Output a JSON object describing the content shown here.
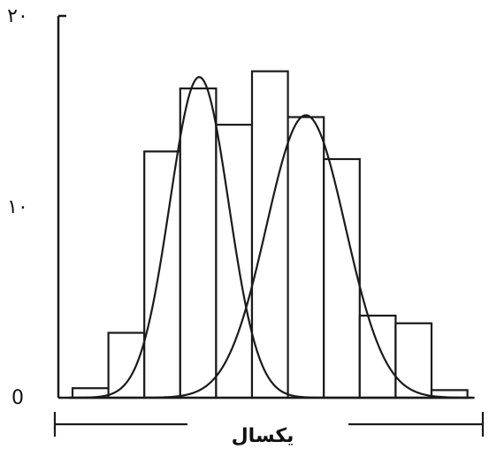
{
  "chart_data": {
    "type": "bar",
    "title": "",
    "xlabel": "یکسال",
    "ylabel": "",
    "ylim": [
      0,
      20
    ],
    "yticks": [
      {
        "value": 0,
        "label": "0"
      },
      {
        "value": 10,
        "label": "۱۰"
      },
      {
        "value": 20,
        "label": "۲۰"
      }
    ],
    "x": [
      1,
      2,
      3,
      4,
      5,
      6,
      7,
      8,
      9,
      10,
      11
    ],
    "values": [
      0.5,
      3.4,
      12.9,
      16.2,
      14.3,
      17.1,
      14.7,
      12.5,
      4.3,
      3.9,
      0.4
    ],
    "bar_fill": "#ffffff",
    "line_color": "#1a1a1a",
    "curves": [
      {
        "type": "normal",
        "peak": 16.8,
        "center": 4.03,
        "sd": 0.82
      },
      {
        "type": "normal",
        "peak": 14.8,
        "center": 7.0,
        "sd": 1.1
      }
    ],
    "grid": false,
    "legend": "none"
  }
}
